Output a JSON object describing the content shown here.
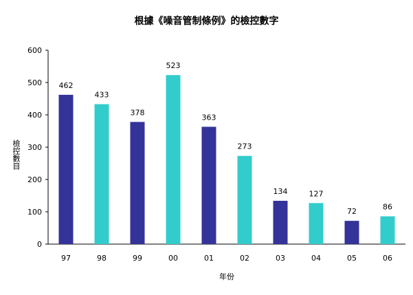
{
  "chart_data": {
    "type": "bar",
    "title": "根據《噪音管制條例》的檢控數字",
    "xlabel": "年份",
    "ylabel": "檢控數目",
    "categories": [
      "97",
      "98",
      "99",
      "00",
      "01",
      "02",
      "03",
      "04",
      "05",
      "06"
    ],
    "values": [
      462,
      433,
      378,
      523,
      363,
      273,
      134,
      127,
      72,
      86
    ],
    "ylim": [
      0,
      600
    ],
    "yticks": [
      0,
      100,
      200,
      300,
      400,
      500,
      600
    ],
    "grid": false,
    "colors": [
      "#333399",
      "#33CCCC"
    ]
  }
}
